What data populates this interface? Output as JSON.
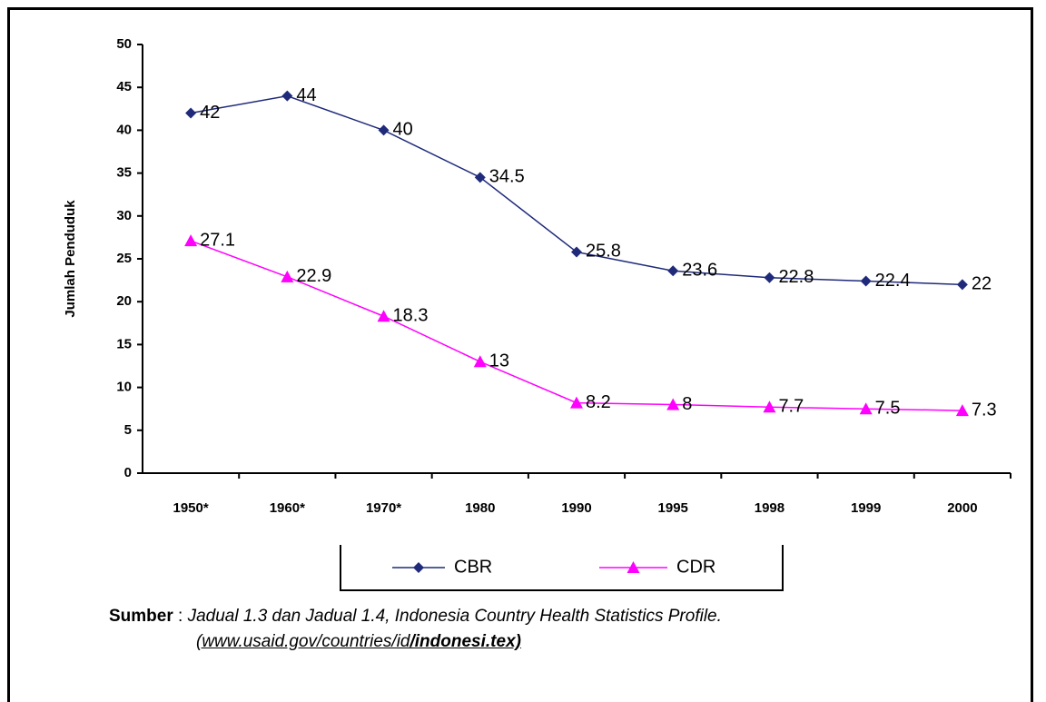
{
  "chart_data": {
    "type": "line",
    "y_label": "Jumlah Penduduk",
    "categories": [
      "1950*",
      "1960*",
      "1970*",
      "1980",
      "1990",
      "1995",
      "1998",
      "1999",
      "2000"
    ],
    "series": [
      {
        "name": "CBR",
        "color": "#1f2a7a",
        "marker": "diamond",
        "values": [
          42,
          44,
          40,
          34.5,
          25.8,
          23.6,
          22.8,
          22.4,
          22
        ]
      },
      {
        "name": "CDR",
        "color": "#ff00ff",
        "marker": "triangle",
        "values": [
          27.1,
          22.9,
          18.3,
          13,
          8.2,
          8,
          7.7,
          7.5,
          7.3
        ]
      }
    ],
    "ylim": [
      0,
      50
    ],
    "yticks": [
      0,
      5,
      10,
      15,
      20,
      25,
      30,
      35,
      40,
      45,
      50
    ],
    "grid": false
  },
  "source": {
    "label": "Sumber",
    "separator": ":",
    "text": "Jadual 1.3 dan Jadual 1.4,  Indonesia Country Health Statistics Profile.",
    "url": "(www.usaid.gov/countries/id",
    "file": "/indonesi.tex)"
  }
}
